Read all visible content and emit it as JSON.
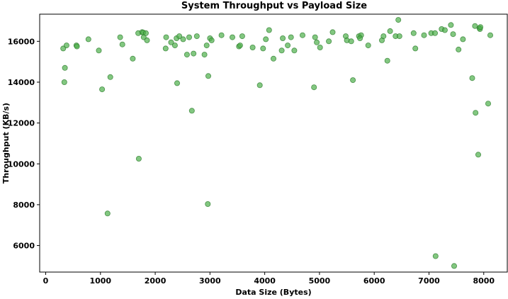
{
  "chart_data": {
    "type": "scatter",
    "title": "System Throughput vs Payload Size",
    "xlabel": "Data Size (Bytes)",
    "ylabel": "Throughput (KB/s)",
    "xlim": [
      -110,
      8430
    ],
    "ylim": [
      4700,
      17330
    ],
    "xticks": [
      0,
      1000,
      2000,
      3000,
      4000,
      5000,
      6000,
      7000,
      8000
    ],
    "yticks": [
      6000,
      8000,
      10000,
      12000,
      14000,
      16000
    ],
    "grid": false,
    "marker_color": "#4daf4a",
    "marker_edge_color": "#2e7d2e",
    "marker_opacity": 0.7,
    "series": [
      {
        "points": [
          [
            320,
            15650
          ],
          [
            340,
            14000
          ],
          [
            350,
            14700
          ],
          [
            380,
            15800
          ],
          [
            560,
            15800
          ],
          [
            570,
            15750
          ],
          [
            780,
            16100
          ],
          [
            970,
            15550
          ],
          [
            1030,
            13650
          ],
          [
            1130,
            7570
          ],
          [
            1180,
            14250
          ],
          [
            1360,
            16200
          ],
          [
            1400,
            15850
          ],
          [
            1590,
            15150
          ],
          [
            1690,
            16400
          ],
          [
            1700,
            10250
          ],
          [
            1760,
            16450
          ],
          [
            1780,
            16430
          ],
          [
            1790,
            16200
          ],
          [
            1830,
            16400
          ],
          [
            1850,
            16050
          ],
          [
            2190,
            15650
          ],
          [
            2200,
            16200
          ],
          [
            2290,
            15950
          ],
          [
            2360,
            15800
          ],
          [
            2390,
            16150
          ],
          [
            2400,
            13950
          ],
          [
            2440,
            16250
          ],
          [
            2510,
            16100
          ],
          [
            2580,
            15350
          ],
          [
            2620,
            16200
          ],
          [
            2670,
            12600
          ],
          [
            2700,
            15400
          ],
          [
            2760,
            16250
          ],
          [
            2900,
            15350
          ],
          [
            2940,
            15800
          ],
          [
            2960,
            8030
          ],
          [
            2970,
            14300
          ],
          [
            3000,
            16150
          ],
          [
            3030,
            16050
          ],
          [
            3210,
            16300
          ],
          [
            3410,
            16200
          ],
          [
            3530,
            15750
          ],
          [
            3550,
            15800
          ],
          [
            3590,
            16250
          ],
          [
            3780,
            15700
          ],
          [
            3910,
            13850
          ],
          [
            3970,
            15650
          ],
          [
            4020,
            16100
          ],
          [
            4080,
            16550
          ],
          [
            4160,
            15150
          ],
          [
            4310,
            15550
          ],
          [
            4330,
            16150
          ],
          [
            4420,
            15800
          ],
          [
            4480,
            16200
          ],
          [
            4540,
            15550
          ],
          [
            4690,
            16300
          ],
          [
            4900,
            13750
          ],
          [
            4920,
            16200
          ],
          [
            4950,
            15950
          ],
          [
            5010,
            15700
          ],
          [
            5170,
            16000
          ],
          [
            5240,
            16450
          ],
          [
            5480,
            16250
          ],
          [
            5500,
            16050
          ],
          [
            5580,
            16000
          ],
          [
            5610,
            14100
          ],
          [
            5720,
            16250
          ],
          [
            5760,
            16300
          ],
          [
            5740,
            16150
          ],
          [
            5890,
            15800
          ],
          [
            6140,
            16050
          ],
          [
            6170,
            16250
          ],
          [
            6240,
            15050
          ],
          [
            6290,
            16500
          ],
          [
            6390,
            16250
          ],
          [
            6440,
            17050
          ],
          [
            6460,
            16250
          ],
          [
            6720,
            16400
          ],
          [
            6750,
            15650
          ],
          [
            6910,
            16300
          ],
          [
            7040,
            16400
          ],
          [
            7110,
            16400
          ],
          [
            7120,
            5480
          ],
          [
            7230,
            16600
          ],
          [
            7290,
            16550
          ],
          [
            7400,
            16800
          ],
          [
            7440,
            16350
          ],
          [
            7460,
            5000
          ],
          [
            7540,
            15600
          ],
          [
            7620,
            16100
          ],
          [
            7790,
            14200
          ],
          [
            7840,
            16750
          ],
          [
            7850,
            12500
          ],
          [
            7900,
            10450
          ],
          [
            7920,
            16650
          ],
          [
            7930,
            16600
          ],
          [
            7940,
            16700
          ],
          [
            8080,
            12950
          ],
          [
            8120,
            16300
          ]
        ]
      }
    ]
  }
}
